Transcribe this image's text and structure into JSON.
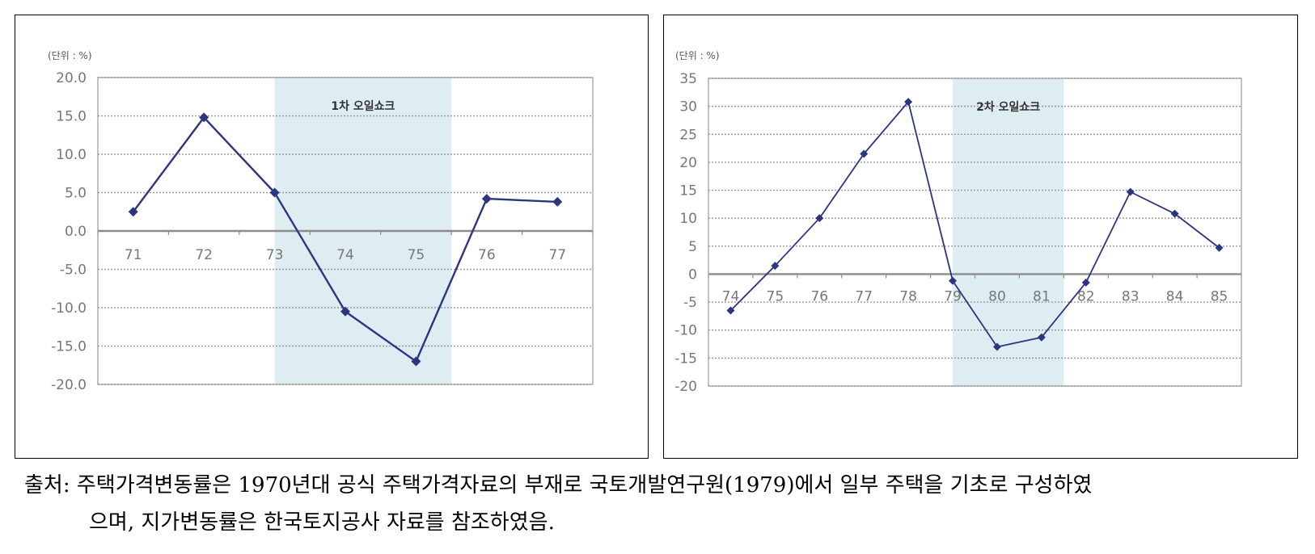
{
  "charts": {
    "left": {
      "unit_label": "(단위 : %)",
      "shade_label": "1차 오일쇼크"
    },
    "right": {
      "unit_label": "(단위 : %)",
      "shade_label": "2차 오일쇼크"
    }
  },
  "chart_data": [
    {
      "type": "line",
      "title": "",
      "xlabel": "",
      "ylabel": "",
      "categories": [
        "71",
        "72",
        "73",
        "74",
        "75",
        "76",
        "77"
      ],
      "values": [
        2.5,
        14.8,
        5.0,
        -10.5,
        -17.0,
        4.2,
        3.8
      ],
      "ylim": [
        -20,
        20
      ],
      "yticks": [
        20,
        15,
        10,
        5,
        0,
        -5,
        -10,
        -15,
        -20
      ],
      "ytick_labels": [
        "20.0",
        "15.0",
        "10.0",
        "5.0",
        "0.0",
        "-5.0",
        "-10.0",
        "-15.0",
        "-20.0"
      ],
      "shaded_range": [
        "73",
        "75"
      ],
      "shaded_label": "1차 오일쇼크",
      "grid": true,
      "line_color": "#2e3580",
      "shade_color": "#deedf2"
    },
    {
      "type": "line",
      "title": "",
      "xlabel": "",
      "ylabel": "",
      "categories": [
        "74",
        "75",
        "76",
        "77",
        "78",
        "79",
        "80",
        "81",
        "82",
        "83",
        "84",
        "85"
      ],
      "values": [
        -6.5,
        1.5,
        10.0,
        21.5,
        30.8,
        -1.2,
        -13.0,
        -11.3,
        -1.5,
        14.7,
        10.8,
        4.7
      ],
      "ylim": [
        -20,
        35
      ],
      "yticks": [
        35,
        30,
        25,
        20,
        15,
        10,
        5,
        0,
        -5,
        -10,
        -15,
        -20
      ],
      "ytick_labels": [
        "35",
        "30",
        "25",
        "20",
        "15",
        "10",
        "5",
        "0",
        "-5",
        "-10",
        "-15",
        "-20"
      ],
      "shaded_range": [
        "79",
        "81"
      ],
      "shaded_label": "2차 오일쇼크",
      "grid": true,
      "line_color": "#2e3580",
      "shade_color": "#deedf2"
    }
  ],
  "caption": {
    "line1": "출처: 주택가격변동률은 1970년대 공식 주택가격자료의 부재로 국토개발연구원(1979)에서 일부 주택을 기초로 구성하였",
    "line2": "으며, 지가변동률은 한국토지공사 자료를 참조하였음."
  }
}
